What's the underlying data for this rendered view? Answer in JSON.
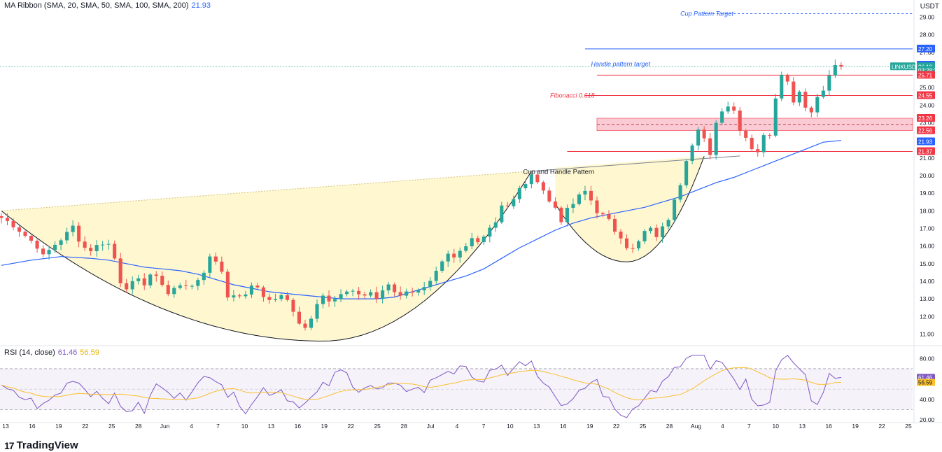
{
  "header": {
    "ma_legend_label": "MA Ribbon (SMA, 20, SMA, 50, SMA, 100, SMA, 200)",
    "ma_legend_value": "21.93",
    "currency": "USDT"
  },
  "rsi_header": {
    "label": "RSI (14, close)",
    "rsi_value": "61.46",
    "ma_value": "56.59"
  },
  "branding": {
    "logo_text": "TradingView"
  },
  "colors": {
    "up": "#26a69a",
    "down": "#ef5350",
    "ma": "#2962ff",
    "rsi": "#7e57c2",
    "rsi_ma": "#fbc02d",
    "pattern_fill": "#fff6c8",
    "fib_zone": "#f7a8b8",
    "price_tag": "#26a69a",
    "level_red": "#f23645",
    "level_blue": "#2962ff"
  },
  "chart_data": [
    {
      "type": "candlestick",
      "symbol": "LINKUSDT",
      "y_axis_labels": [
        "11.00",
        "12.00",
        "13.00",
        "14.00",
        "15.00",
        "16.00",
        "17.00",
        "18.00",
        "19.00",
        "20.00",
        "21.00",
        "22.00",
        "23.00",
        "24.00",
        "25.00",
        "27.00",
        "28.00",
        "29.00"
      ],
      "ylim": [
        10.5,
        29.5
      ],
      "x_axis_labels": [
        "13",
        "16",
        "19",
        "22",
        "25",
        "28",
        "Jun",
        "4",
        "7",
        "10",
        "13",
        "16",
        "19",
        "22",
        "25",
        "28",
        "Jul",
        "4",
        "7",
        "10",
        "13",
        "16",
        "19",
        "22",
        "25",
        "28",
        "Aug",
        "4",
        "7",
        "10",
        "13",
        "16",
        "19",
        "22",
        "25"
      ],
      "close_path": [
        [
          0,
          17.6
        ],
        [
          2,
          17.2
        ],
        [
          4,
          16.6
        ],
        [
          6,
          16.0
        ],
        [
          7,
          15.4
        ],
        [
          9,
          16.1
        ],
        [
          11,
          16.7
        ],
        [
          12,
          17.1
        ],
        [
          13,
          16.4
        ],
        [
          14,
          15.9
        ],
        [
          15,
          15.8
        ],
        [
          17,
          16.2
        ],
        [
          18,
          16.1
        ],
        [
          19,
          15.3
        ],
        [
          20,
          14.0
        ],
        [
          21,
          13.7
        ],
        [
          23,
          14.0
        ],
        [
          24,
          13.9
        ],
        [
          25,
          14.4
        ],
        [
          27,
          13.9
        ],
        [
          28,
          13.3
        ],
        [
          29,
          13.6
        ],
        [
          31,
          13.8
        ],
        [
          33,
          13.9
        ],
        [
          34,
          14.5
        ],
        [
          35,
          15.5
        ],
        [
          36,
          15.1
        ],
        [
          37,
          14.6
        ],
        [
          38,
          13.2
        ],
        [
          39,
          13.1
        ],
        [
          41,
          13.3
        ],
        [
          42,
          13.9
        ],
        [
          43,
          13.5
        ],
        [
          44,
          13.2
        ],
        [
          45,
          12.8
        ],
        [
          46,
          13.0
        ],
        [
          47,
          13.3
        ],
        [
          48,
          12.9
        ],
        [
          49,
          12.3
        ],
        [
          50,
          11.5
        ],
        [
          51,
          11.3
        ],
        [
          52,
          12.0
        ],
        [
          53,
          12.8
        ],
        [
          54,
          13.2
        ],
        [
          55,
          13.0
        ],
        [
          57,
          13.3
        ],
        [
          59,
          13.4
        ],
        [
          60,
          13.1
        ],
        [
          62,
          13.4
        ],
        [
          63,
          13.0
        ],
        [
          64,
          13.5
        ],
        [
          65,
          13.7
        ],
        [
          66,
          13.4
        ],
        [
          67,
          13.2
        ],
        [
          68,
          13.5
        ],
        [
          70,
          13.4
        ],
        [
          71,
          13.8
        ],
        [
          72,
          14.1
        ],
        [
          73,
          14.5
        ],
        [
          74,
          15.0
        ],
        [
          75,
          15.4
        ],
        [
          76,
          15.2
        ],
        [
          77,
          15.6
        ],
        [
          78,
          15.9
        ],
        [
          79,
          16.4
        ],
        [
          80,
          16.2
        ],
        [
          81,
          16.7
        ],
        [
          82,
          17.1
        ],
        [
          83,
          17.4
        ],
        [
          84,
          18.4
        ],
        [
          85,
          18.3
        ],
        [
          86,
          18.6
        ],
        [
          87,
          19.2
        ],
        [
          88,
          19.6
        ],
        [
          89,
          19.9
        ],
        [
          90,
          19.8
        ],
        [
          91,
          19.2
        ],
        [
          92,
          18.5
        ],
        [
          93,
          18.2
        ],
        [
          94,
          17.5
        ],
        [
          95,
          18.0
        ],
        [
          96,
          18.4
        ],
        [
          97,
          18.8
        ],
        [
          98,
          19.1
        ],
        [
          99,
          18.6
        ],
        [
          100,
          18.0
        ],
        [
          101,
          17.7
        ],
        [
          102,
          17.4
        ],
        [
          103,
          16.9
        ],
        [
          104,
          16.6
        ],
        [
          105,
          16.0
        ],
        [
          106,
          15.8
        ],
        [
          107,
          16.2
        ],
        [
          108,
          16.8
        ],
        [
          109,
          16.9
        ],
        [
          110,
          16.6
        ],
        [
          111,
          17.0
        ],
        [
          112,
          17.6
        ],
        [
          113,
          18.8
        ],
        [
          114,
          19.6
        ],
        [
          115,
          21.0
        ],
        [
          116,
          21.7
        ],
        [
          117,
          22.5
        ],
        [
          118,
          22.0
        ],
        [
          119,
          21.3
        ],
        [
          120,
          23.0
        ],
        [
          121,
          23.8
        ],
        [
          122,
          24.0
        ],
        [
          123,
          23.7
        ],
        [
          124,
          22.7
        ],
        [
          125,
          22.2
        ],
        [
          126,
          21.6
        ],
        [
          127,
          21.4
        ],
        [
          128,
          22.2
        ],
        [
          129,
          22.4
        ],
        [
          130,
          24.5
        ],
        [
          131,
          25.9
        ],
        [
          132,
          25.3
        ],
        [
          133,
          24.3
        ],
        [
          134,
          24.8
        ],
        [
          135,
          24.0
        ],
        [
          136,
          23.6
        ],
        [
          137,
          24.5
        ],
        [
          138,
          25.0
        ],
        [
          139,
          25.6
        ],
        [
          140,
          26.3
        ],
        [
          141,
          26.19
        ]
      ],
      "ma_line": [
        [
          0,
          14.9
        ],
        [
          5,
          15.2
        ],
        [
          10,
          15.4
        ],
        [
          15,
          15.3
        ],
        [
          18,
          15.2
        ],
        [
          21,
          15.0
        ],
        [
          24,
          14.8
        ],
        [
          27,
          14.7
        ],
        [
          30,
          14.6
        ],
        [
          33,
          14.4
        ],
        [
          36,
          14.1
        ],
        [
          39,
          13.8
        ],
        [
          42,
          13.6
        ],
        [
          45,
          13.4
        ],
        [
          48,
          13.3
        ],
        [
          51,
          13.2
        ],
        [
          54,
          13.1
        ],
        [
          57,
          13.0
        ],
        [
          60,
          13.0
        ],
        [
          63,
          13.0
        ],
        [
          66,
          13.1
        ],
        [
          69,
          13.4
        ],
        [
          72,
          13.7
        ],
        [
          75,
          14.0
        ],
        [
          78,
          14.3
        ],
        [
          81,
          14.7
        ],
        [
          84,
          15.3
        ],
        [
          87,
          15.9
        ],
        [
          90,
          16.4
        ],
        [
          93,
          16.9
        ],
        [
          96,
          17.3
        ],
        [
          99,
          17.6
        ],
        [
          102,
          17.8
        ],
        [
          105,
          18.0
        ],
        [
          108,
          18.2
        ],
        [
          111,
          18.5
        ],
        [
          114,
          18.8
        ],
        [
          117,
          19.2
        ],
        [
          120,
          19.6
        ],
        [
          123,
          19.9
        ],
        [
          126,
          20.3
        ],
        [
          129,
          20.7
        ],
        [
          132,
          21.1
        ],
        [
          135,
          21.5
        ],
        [
          138,
          21.9
        ],
        [
          141,
          22.0
        ]
      ],
      "rsi_range": [
        20,
        85
      ],
      "rsi_axis_labels": [
        "20.00",
        "40.00",
        "60.00",
        "80.00"
      ],
      "rsi_bands": [
        30,
        70
      ],
      "annotations": {
        "cup_handle_label": "Cup and Handle Pattern",
        "cup_target_label": "Cup Pattern Target",
        "cup_target_value": 29.2,
        "handle_target_label": "Handle pattern target",
        "handle_target_value": 26.19,
        "fib_label": "Fibonacci 0.618",
        "fib_value": 24.55,
        "zone_top": 23.26,
        "zone_bottom": 22.56,
        "support_value": 21.37,
        "resistance_value": 27.2,
        "level_2628": 26.28,
        "level_2571": 25.71
      },
      "price_tags": [
        {
          "text": "27.20",
          "value": 27.2,
          "color": "#2962ff"
        },
        {
          "text": "26.28",
          "value": 26.28,
          "color": "#2962ff"
        },
        {
          "text": "LINKUSDT",
          "value": 26.19,
          "color": "#26a69a",
          "wide": true
        },
        {
          "text": "26.19",
          "value": 26.19,
          "color": "#26a69a"
        },
        {
          "text": "03:28:23",
          "value": 25.98,
          "color": "#26a69a"
        },
        {
          "text": "25.71",
          "value": 25.71,
          "color": "#f23645"
        },
        {
          "text": "24.55",
          "value": 24.55,
          "color": "#f23645"
        },
        {
          "text": "23.26",
          "value": 23.26,
          "color": "#f23645"
        },
        {
          "text": "22.56",
          "value": 22.56,
          "color": "#f23645"
        },
        {
          "text": "21.93",
          "value": 21.93,
          "color": "#2962ff"
        },
        {
          "text": "21.37",
          "value": 21.37,
          "color": "#f23645"
        }
      ],
      "rsi_tags": [
        {
          "text": "61.46",
          "value": 61.46,
          "color": "#7e57c2"
        },
        {
          "text": "56.59",
          "value": 56.59,
          "color": "#fbc02d"
        }
      ]
    }
  ]
}
